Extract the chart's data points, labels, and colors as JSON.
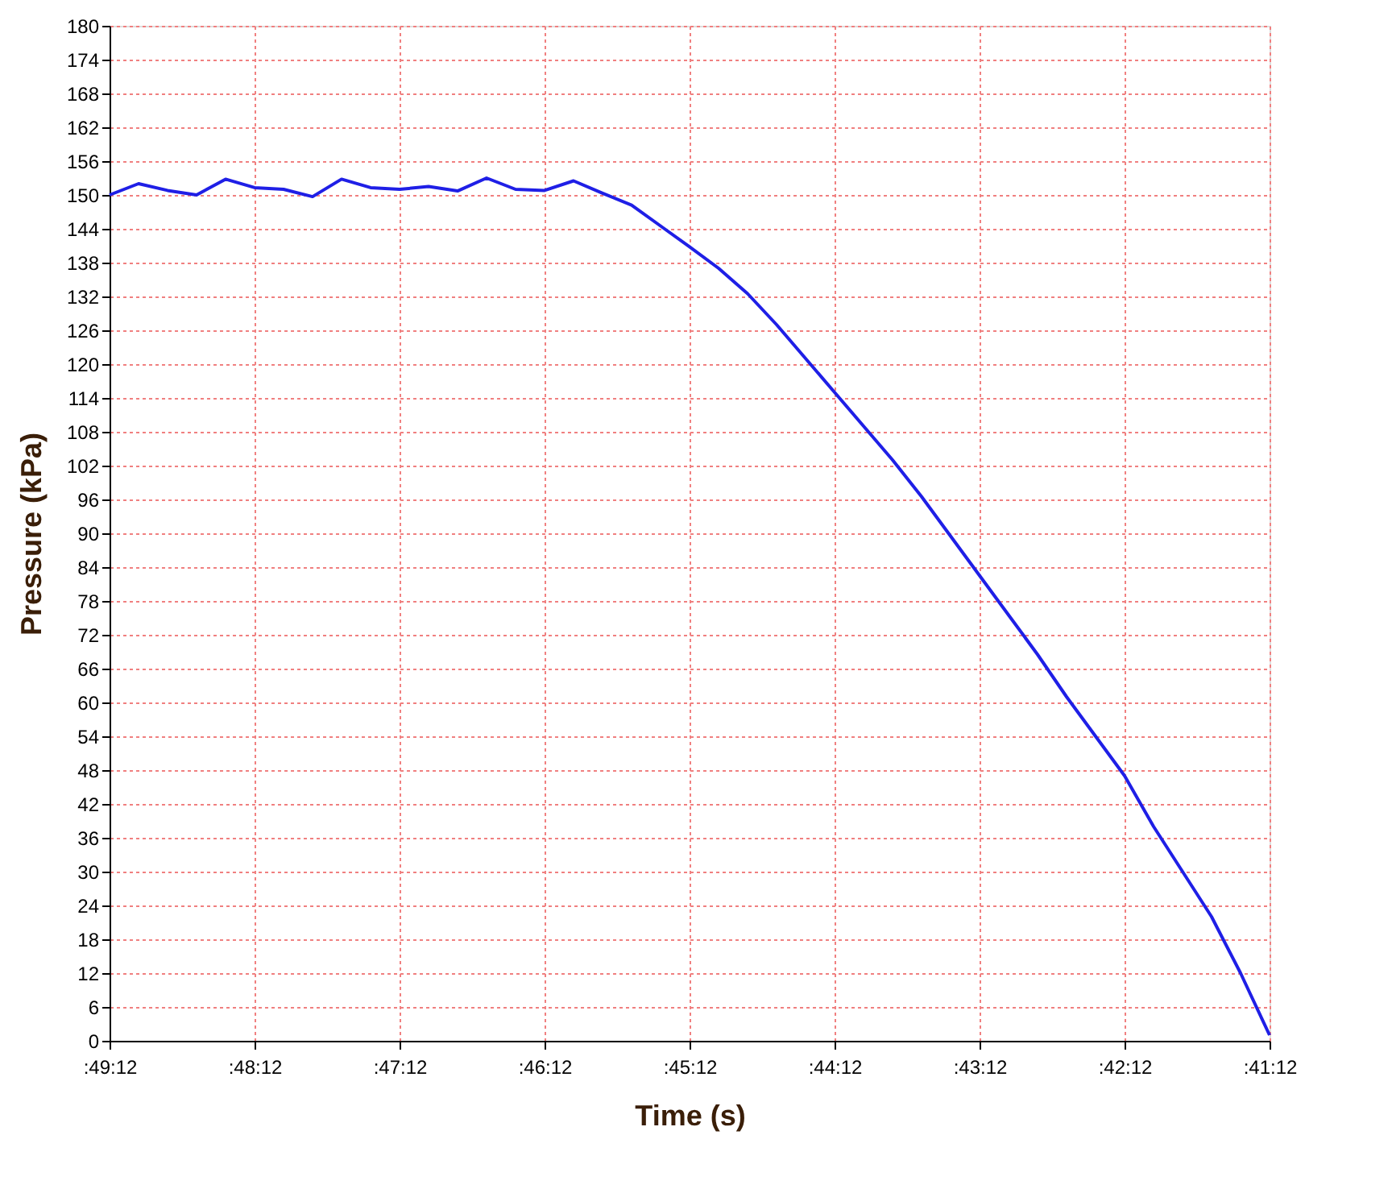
{
  "chart_data": {
    "type": "line",
    "xlabel": "Time (s)",
    "ylabel": "Pressure (kPa)",
    "categories": [
      ":49:12",
      null,
      null,
      null,
      null,
      ":48:12",
      null,
      null,
      null,
      null,
      ":47:12",
      null,
      null,
      null,
      null,
      ":46:12",
      null,
      null,
      null,
      null,
      ":45:12",
      null,
      null,
      null,
      null,
      ":44:12",
      null,
      null,
      null,
      null,
      ":43:12",
      null,
      null,
      null,
      null,
      ":42:12",
      null,
      null,
      null,
      null,
      ":41:12"
    ],
    "series": [
      {
        "color": "#1f1fe6",
        "values": [
          150,
          152,
          150.8,
          150,
          152.8,
          151.3,
          151,
          149.7,
          152.8,
          151.3,
          151,
          151.5,
          150.7,
          153,
          151,
          150.8,
          152.5,
          150.3,
          148.2,
          144.5,
          140.8,
          137,
          132.5,
          127,
          121,
          115,
          109,
          103,
          96.5,
          89.5,
          82.5,
          75.5,
          68.5,
          61,
          54,
          47,
          38,
          30,
          22,
          12,
          1
        ]
      }
    ],
    "ylim": [
      0,
      180
    ],
    "yticks": [
      0,
      6,
      12,
      18,
      24,
      30,
      36,
      42,
      48,
      54,
      60,
      66,
      72,
      78,
      84,
      90,
      96,
      102,
      108,
      114,
      120,
      126,
      132,
      138,
      144,
      150,
      156,
      162,
      168,
      174,
      180
    ],
    "grid": true,
    "marker": "none",
    "line_style": "solid"
  }
}
